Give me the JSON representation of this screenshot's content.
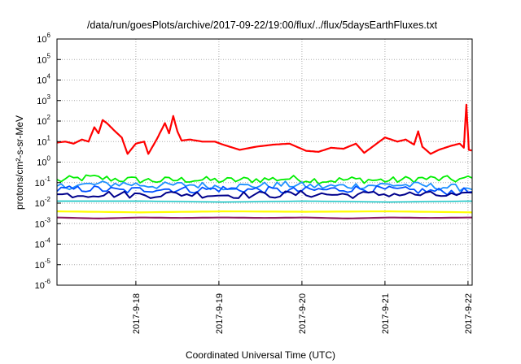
{
  "chart_data": {
    "type": "line",
    "title": "/data/run/goesPlots/archive/2017-09-22/19:00/flux/../flux/5daysEarthFluxes.txt",
    "xlabel": "Coordinated Universal Time (UTC)",
    "ylabel": "protons/cm²-s-sr-MeV",
    "y_scale": "log",
    "ylim_exp": [
      -6,
      6
    ],
    "y_ticks": [
      {
        "base": "10",
        "exp": "-6"
      },
      {
        "base": "10",
        "exp": "-5"
      },
      {
        "base": "10",
        "exp": "-4"
      },
      {
        "base": "10",
        "exp": "-3"
      },
      {
        "base": "10",
        "exp": "-2"
      },
      {
        "base": "10",
        "exp": "-1"
      },
      {
        "base": "10",
        "exp": "0"
      },
      {
        "base": "10",
        "exp": "1"
      },
      {
        "base": "10",
        "exp": "2"
      },
      {
        "base": "10",
        "exp": "3"
      },
      {
        "base": "10",
        "exp": "4"
      },
      {
        "base": "10",
        "exp": "5"
      },
      {
        "base": "10",
        "exp": "6"
      }
    ],
    "x_range_days": [
      0,
      5
    ],
    "x_ticks": [
      {
        "label": "2017-9-18",
        "day": 0.95
      },
      {
        "label": "2017-9-19",
        "day": 1.95
      },
      {
        "label": "2017-9-20",
        "day": 2.95
      },
      {
        "label": "2017-9-21",
        "day": 3.95
      },
      {
        "label": "2017-9-22",
        "day": 4.95
      }
    ],
    "grid": true,
    "series": [
      {
        "color": "#ff0000",
        "lw": 2.2,
        "points": [
          [
            0,
            0.95
          ],
          [
            0.1,
            1.0
          ],
          [
            0.2,
            0.9
          ],
          [
            0.3,
            1.1
          ],
          [
            0.38,
            1.0
          ],
          [
            0.45,
            1.7
          ],
          [
            0.5,
            1.4
          ],
          [
            0.55,
            2.05
          ],
          [
            0.6,
            1.9
          ],
          [
            0.7,
            1.5
          ],
          [
            0.78,
            1.2
          ],
          [
            0.85,
            0.4
          ],
          [
            0.95,
            0.9
          ],
          [
            1.05,
            1.0
          ],
          [
            1.1,
            0.4
          ],
          [
            1.2,
            1.1
          ],
          [
            1.3,
            1.9
          ],
          [
            1.35,
            1.4
          ],
          [
            1.4,
            2.25
          ],
          [
            1.45,
            1.5
          ],
          [
            1.5,
            1.05
          ],
          [
            1.6,
            1.1
          ],
          [
            1.75,
            1.0
          ],
          [
            1.9,
            1.0
          ],
          [
            2.0,
            0.85
          ],
          [
            2.2,
            0.6
          ],
          [
            2.4,
            0.75
          ],
          [
            2.6,
            0.85
          ],
          [
            2.8,
            0.9
          ],
          [
            3.0,
            0.55
          ],
          [
            3.15,
            0.5
          ],
          [
            3.3,
            0.7
          ],
          [
            3.45,
            0.65
          ],
          [
            3.6,
            0.9
          ],
          [
            3.7,
            0.45
          ],
          [
            3.85,
            0.9
          ],
          [
            3.95,
            1.2
          ],
          [
            4.1,
            1.0
          ],
          [
            4.2,
            1.1
          ],
          [
            4.3,
            0.85
          ],
          [
            4.35,
            1.5
          ],
          [
            4.4,
            0.75
          ],
          [
            4.5,
            0.4
          ],
          [
            4.6,
            0.6
          ],
          [
            4.75,
            0.8
          ],
          [
            4.85,
            0.9
          ],
          [
            4.9,
            0.7
          ],
          [
            4.93,
            2.8
          ],
          [
            4.96,
            0.6
          ],
          [
            5.05,
            0.5
          ],
          [
            5.15,
            0.3
          ],
          [
            5.3,
            0.4
          ],
          [
            5.5,
            0.6
          ],
          [
            5.7,
            1.0
          ],
          [
            5.85,
            1.1
          ],
          [
            5.97,
            0.75
          ]
        ]
      },
      {
        "color": "#00ee00",
        "lw": 1.8,
        "points": [
          [
            0,
            -0.9
          ],
          [
            0.4,
            -0.75
          ],
          [
            0.8,
            -0.85
          ],
          [
            1.2,
            -0.9
          ],
          [
            1.6,
            -0.85
          ],
          [
            2.0,
            -0.9
          ],
          [
            2.4,
            -0.85
          ],
          [
            2.8,
            -0.8
          ],
          [
            3.2,
            -0.9
          ],
          [
            3.6,
            -0.85
          ],
          [
            4.0,
            -0.9
          ],
          [
            4.4,
            -0.8
          ],
          [
            4.8,
            -0.85
          ],
          [
            5.2,
            -0.75
          ],
          [
            5.6,
            -0.7
          ],
          [
            5.97,
            -0.65
          ]
        ]
      },
      {
        "color": "#1e90ff",
        "lw": 1.8,
        "points": [
          [
            0,
            -1.2
          ],
          [
            0.4,
            -1.1
          ],
          [
            0.8,
            -1.05
          ],
          [
            1.2,
            -1.15
          ],
          [
            1.6,
            -1.1
          ],
          [
            2.0,
            -1.2
          ],
          [
            2.4,
            -1.15
          ],
          [
            2.8,
            -1.1
          ],
          [
            3.2,
            -1.2
          ],
          [
            3.6,
            -1.15
          ],
          [
            4.0,
            -1.1
          ],
          [
            4.4,
            -1.15
          ],
          [
            4.8,
            -1.25
          ],
          [
            5.2,
            -1.2
          ],
          [
            5.6,
            -1.15
          ],
          [
            5.97,
            -1.1
          ]
        ]
      },
      {
        "color": "#0050ff",
        "lw": 1.8,
        "points": [
          [
            0,
            -1.35
          ],
          [
            0.4,
            -1.3
          ],
          [
            0.8,
            -1.4
          ],
          [
            1.2,
            -1.3
          ],
          [
            1.6,
            -1.35
          ],
          [
            2.0,
            -1.3
          ],
          [
            2.4,
            -1.35
          ],
          [
            2.8,
            -1.4
          ],
          [
            3.2,
            -1.35
          ],
          [
            3.6,
            -1.3
          ],
          [
            4.0,
            -1.35
          ],
          [
            4.4,
            -1.4
          ],
          [
            4.8,
            -1.45
          ],
          [
            5.2,
            -1.4
          ],
          [
            5.6,
            -1.35
          ],
          [
            5.97,
            -1.3
          ]
        ]
      },
      {
        "color": "#00008b",
        "lw": 2.0,
        "points": [
          [
            0,
            -1.6
          ],
          [
            0.5,
            -1.55
          ],
          [
            1.0,
            -1.6
          ],
          [
            1.5,
            -1.55
          ],
          [
            2.0,
            -1.6
          ],
          [
            2.5,
            -1.6
          ],
          [
            3.0,
            -1.55
          ],
          [
            3.5,
            -1.6
          ],
          [
            4.0,
            -1.55
          ],
          [
            4.5,
            -1.6
          ],
          [
            5.0,
            -1.65
          ],
          [
            5.5,
            -1.6
          ],
          [
            5.97,
            -1.55
          ]
        ]
      },
      {
        "color": "#00bfbf",
        "lw": 1.4,
        "points": [
          [
            0,
            -1.9
          ],
          [
            1.0,
            -1.9
          ],
          [
            2.0,
            -1.95
          ],
          [
            3.0,
            -1.9
          ],
          [
            4.0,
            -1.95
          ],
          [
            5.0,
            -1.9
          ],
          [
            5.97,
            -1.9
          ]
        ]
      },
      {
        "color": "#ffff00",
        "lw": 2.2,
        "points": [
          [
            0,
            -2.4
          ],
          [
            1.0,
            -2.45
          ],
          [
            2.0,
            -2.4
          ],
          [
            3.0,
            -2.42
          ],
          [
            4.0,
            -2.4
          ],
          [
            5.0,
            -2.45
          ],
          [
            5.97,
            -2.4
          ]
        ]
      },
      {
        "color": "#8b1c62",
        "lw": 2.2,
        "points": [
          [
            0,
            -2.7
          ],
          [
            0.5,
            -2.75
          ],
          [
            1.0,
            -2.7
          ],
          [
            1.5,
            -2.72
          ],
          [
            2.0,
            -2.7
          ],
          [
            2.5,
            -2.72
          ],
          [
            3.0,
            -2.7
          ],
          [
            3.5,
            -2.75
          ],
          [
            4.0,
            -2.7
          ],
          [
            4.5,
            -2.72
          ],
          [
            5.0,
            -2.7
          ],
          [
            5.05,
            -3.6
          ],
          [
            5.1,
            -2.75
          ],
          [
            5.5,
            -2.7
          ],
          [
            5.97,
            -2.72
          ]
        ]
      }
    ]
  }
}
